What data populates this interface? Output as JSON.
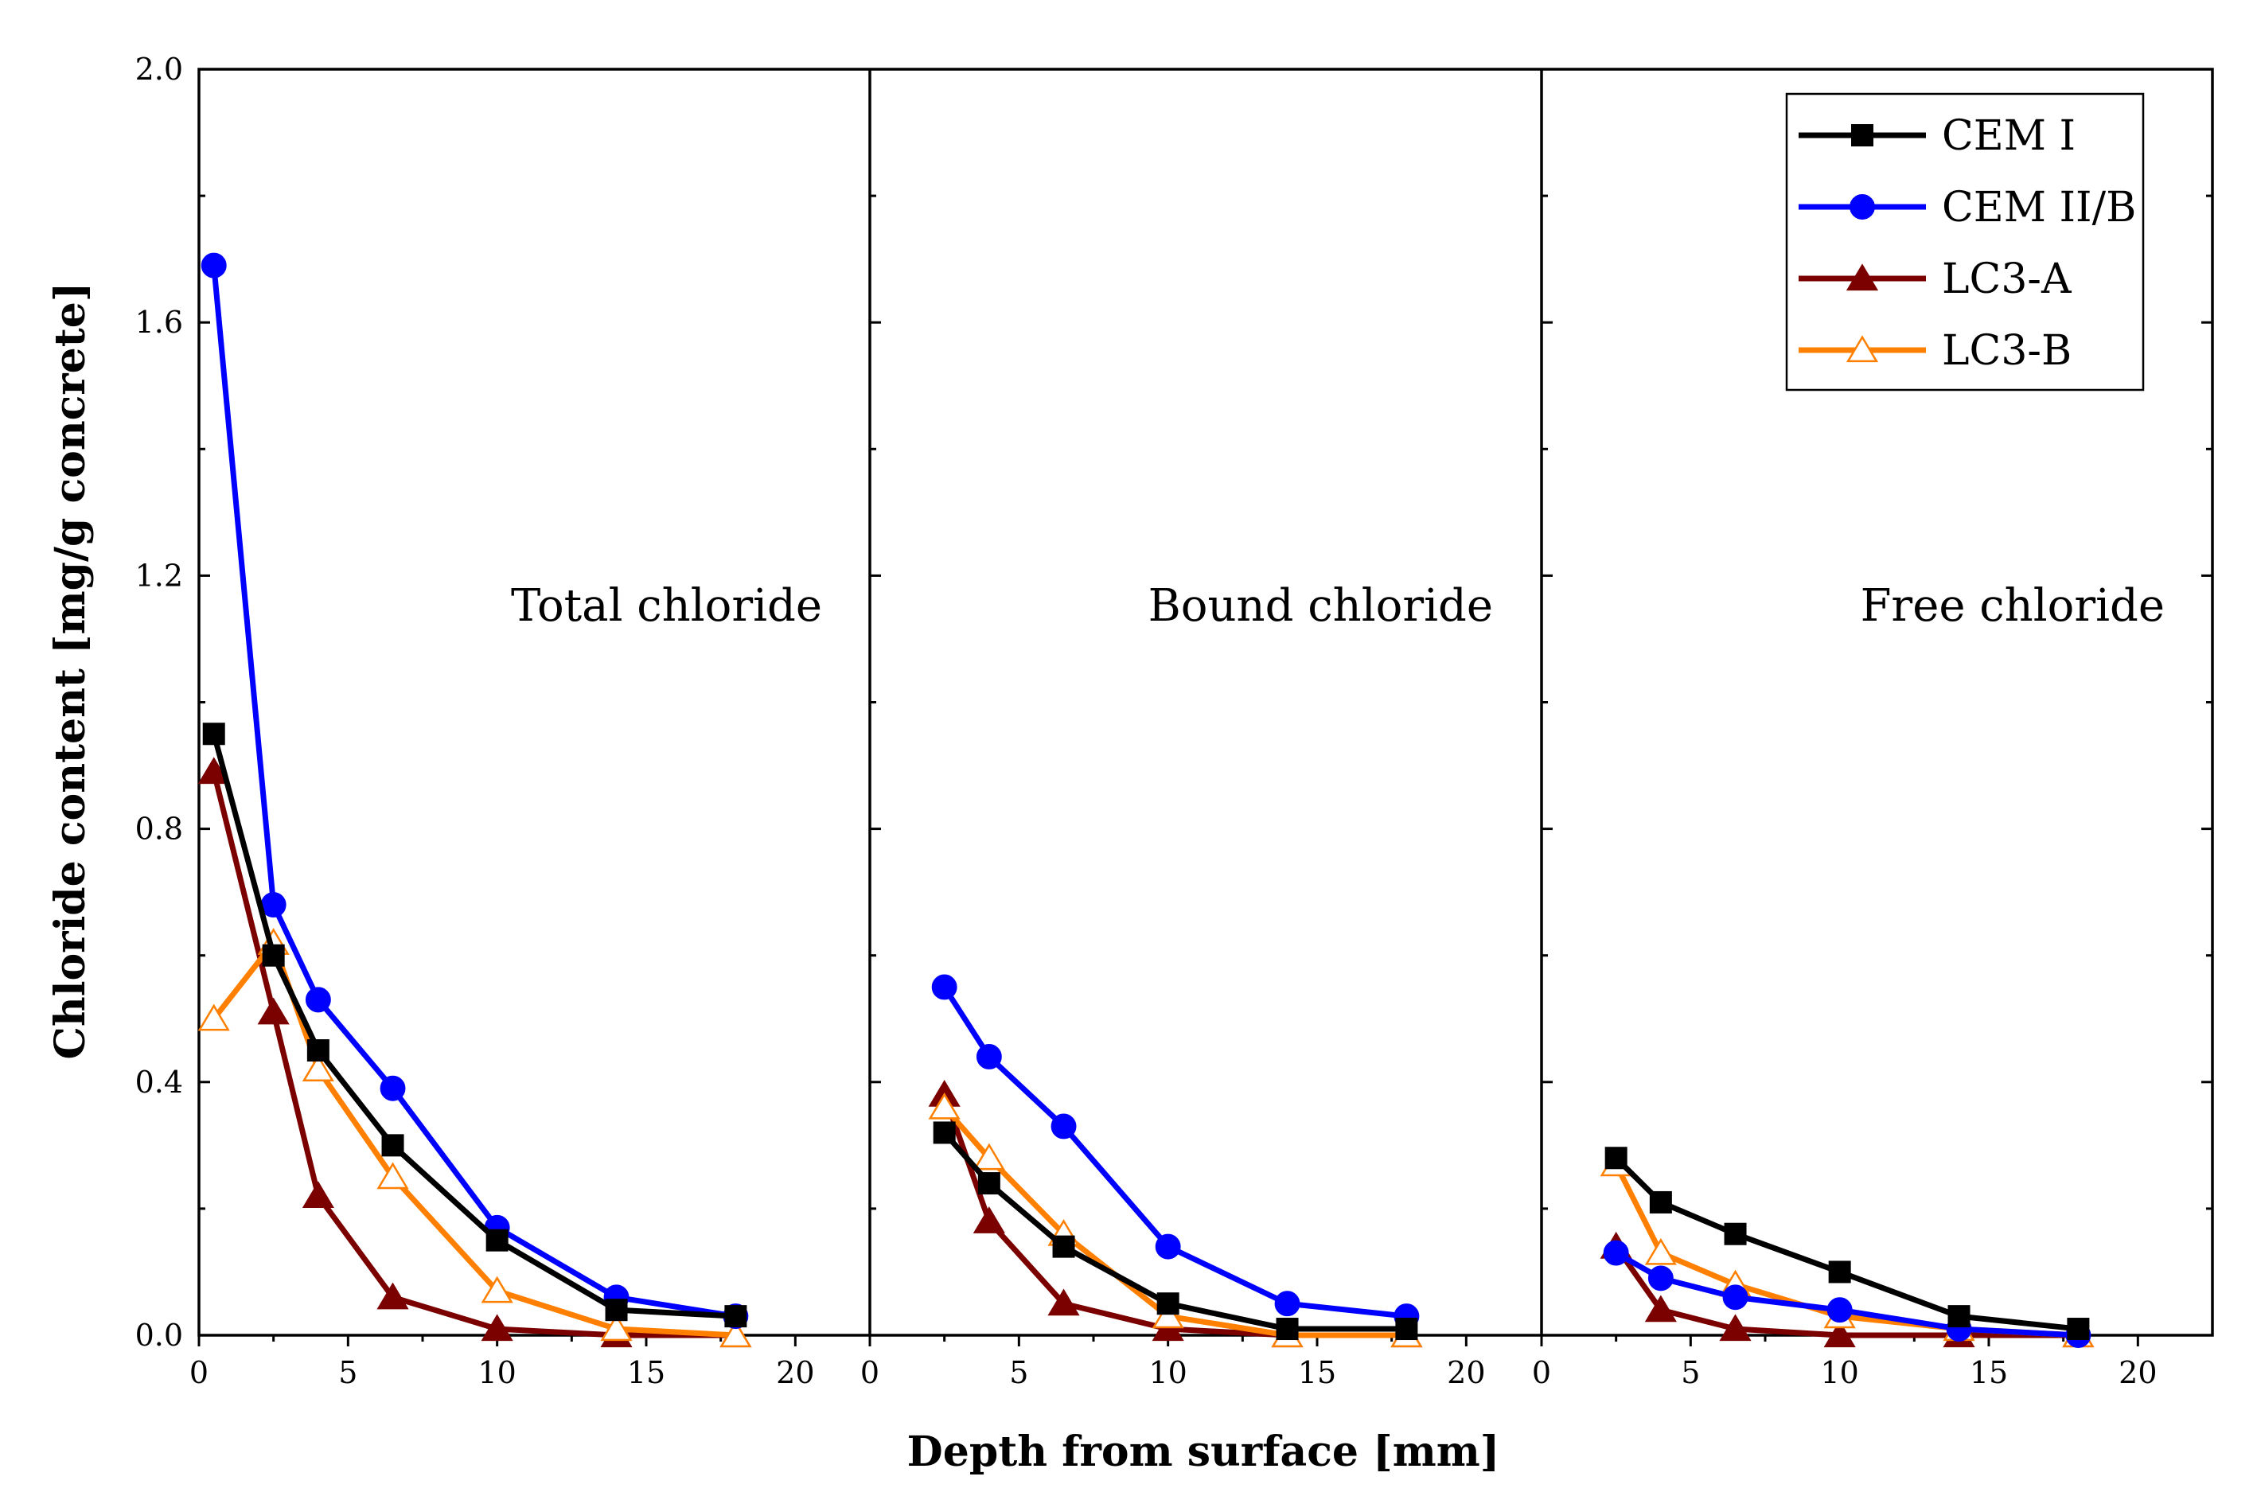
{
  "chart_data": {
    "type": "line",
    "xlabel": "Depth from surface [mm]",
    "ylabel": "Chloride content [mg/g concrete]",
    "ylim": [
      0,
      2.0
    ],
    "yticks": [
      0.0,
      0.4,
      0.8,
      1.2,
      1.6,
      2.0
    ],
    "ytick_labels": [
      "0.0",
      "0.4",
      "0.8",
      "1.2",
      "1.6",
      "2.0"
    ],
    "xlim": [
      0,
      22.5
    ],
    "xticks": [
      0,
      5,
      10,
      15,
      20
    ],
    "xtick_labels": [
      "0",
      "5",
      "10",
      "15",
      "20"
    ],
    "grid": false,
    "legend_position": "top-right",
    "legend": [
      {
        "name": "CEM I",
        "color": "#000000",
        "marker": "square",
        "filled": true
      },
      {
        "name": "CEM II/B",
        "color": "#0000ff",
        "marker": "circle",
        "filled": true
      },
      {
        "name": "LC3-A",
        "color": "#7b0000",
        "marker": "triangle",
        "filled": true
      },
      {
        "name": "LC3-B",
        "color": "#ff8000",
        "marker": "triangle",
        "filled": false
      }
    ],
    "panels": [
      {
        "label": "Total chloride",
        "series": [
          {
            "name": "CEM I",
            "x": [
              0.5,
              2.5,
              4,
              6.5,
              10,
              14,
              18
            ],
            "y": [
              0.95,
              0.6,
              0.45,
              0.3,
              0.15,
              0.04,
              0.03
            ]
          },
          {
            "name": "CEM II/B",
            "x": [
              0.5,
              2.5,
              4,
              6.5,
              10,
              14,
              18
            ],
            "y": [
              1.69,
              0.68,
              0.53,
              0.39,
              0.17,
              0.06,
              0.03
            ]
          },
          {
            "name": "LC3-A",
            "x": [
              0.5,
              2.5,
              4,
              6.5,
              10,
              14,
              18
            ],
            "y": [
              0.89,
              0.51,
              0.22,
              0.06,
              0.01,
              0.0,
              0.0
            ]
          },
          {
            "name": "LC3-B",
            "x": [
              0.5,
              2.5,
              4,
              6.5,
              10,
              14,
              18
            ],
            "y": [
              0.5,
              0.62,
              0.42,
              0.25,
              0.07,
              0.01,
              0.0
            ]
          }
        ]
      },
      {
        "label": "Bound chloride",
        "series": [
          {
            "name": "CEM I",
            "x": [
              2.5,
              4,
              6.5,
              10,
              14,
              18
            ],
            "y": [
              0.32,
              0.24,
              0.14,
              0.05,
              0.01,
              0.01
            ]
          },
          {
            "name": "CEM II/B",
            "x": [
              2.5,
              4,
              6.5,
              10,
              14,
              18
            ],
            "y": [
              0.55,
              0.44,
              0.33,
              0.14,
              0.05,
              0.03
            ]
          },
          {
            "name": "LC3-A",
            "x": [
              2.5,
              4,
              6.5,
              10,
              14,
              18
            ],
            "y": [
              0.38,
              0.18,
              0.05,
              0.01,
              0.0,
              0.0
            ]
          },
          {
            "name": "LC3-B",
            "x": [
              2.5,
              4,
              6.5,
              10,
              14,
              18
            ],
            "y": [
              0.36,
              0.28,
              0.16,
              0.03,
              0.0,
              0.0
            ]
          }
        ]
      },
      {
        "label": "Free chloride",
        "series": [
          {
            "name": "CEM I",
            "x": [
              2.5,
              4,
              6.5,
              10,
              14,
              18
            ],
            "y": [
              0.28,
              0.21,
              0.16,
              0.1,
              0.03,
              0.01
            ]
          },
          {
            "name": "CEM II/B",
            "x": [
              2.5,
              4,
              6.5,
              10,
              14,
              18
            ],
            "y": [
              0.13,
              0.09,
              0.06,
              0.04,
              0.01,
              0.0
            ]
          },
          {
            "name": "LC3-A",
            "x": [
              2.5,
              4,
              6.5,
              10,
              14,
              18
            ],
            "y": [
              0.14,
              0.04,
              0.01,
              0.0,
              0.0,
              0.0
            ]
          },
          {
            "name": "LC3-B",
            "x": [
              2.5,
              4,
              6.5,
              10,
              14,
              18
            ],
            "y": [
              0.27,
              0.13,
              0.08,
              0.03,
              0.01,
              0.0
            ]
          }
        ]
      }
    ]
  }
}
